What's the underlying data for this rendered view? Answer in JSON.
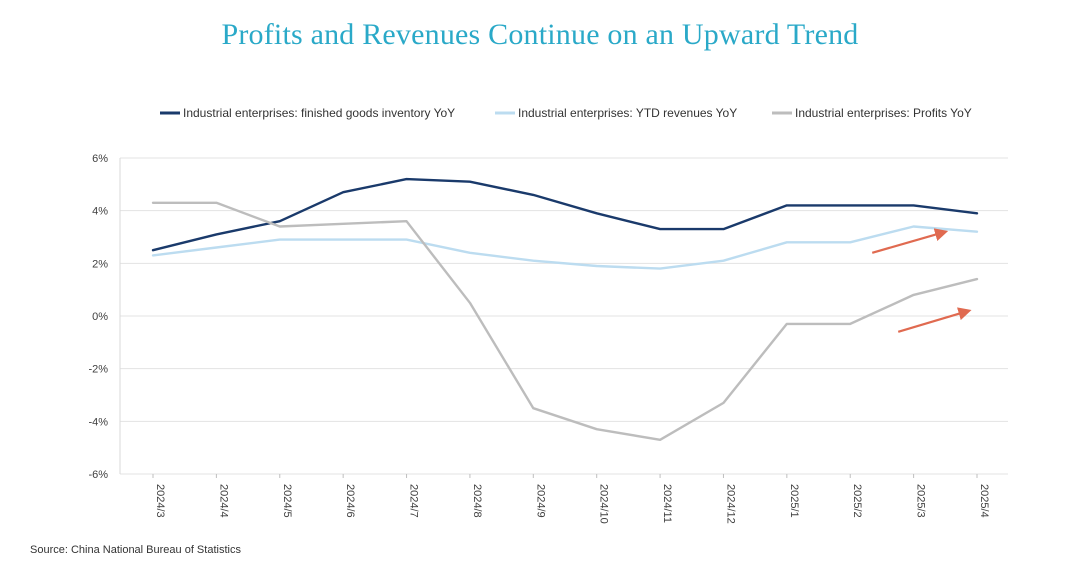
{
  "title": "Profits and Revenues Continue on an Upward Trend",
  "source": "Source: China National Bureau of Statistics",
  "chart_data": {
    "type": "line",
    "categories": [
      "2024/3",
      "2024/4",
      "2024/5",
      "2024/6",
      "2024/7",
      "2024/8",
      "2024/9",
      "2024/10",
      "2024/11",
      "2024/12",
      "2025/1",
      "2025/2",
      "2025/3",
      "2025/4"
    ],
    "ylim": [
      -6,
      6
    ],
    "yticks": [
      6,
      4,
      2,
      0,
      -2,
      -4,
      -6
    ],
    "ytick_labels": [
      "6%",
      "4%",
      "2%",
      "0%",
      "-2%",
      "-4%",
      "-6%"
    ],
    "grid": true,
    "legend_position": "top",
    "series": [
      {
        "name": "Industrial enterprises: finished goods inventory YoY",
        "color": "#1a3a6b",
        "values": [
          2.5,
          3.1,
          3.6,
          4.7,
          5.2,
          5.1,
          4.6,
          3.9,
          3.3,
          3.3,
          4.2,
          4.2,
          4.2,
          3.9
        ]
      },
      {
        "name": "Industrial enterprises: YTD revenues YoY",
        "color": "#bcdcf0",
        "values": [
          2.3,
          2.6,
          2.9,
          2.9,
          2.9,
          2.4,
          2.1,
          1.9,
          1.8,
          2.1,
          2.8,
          2.8,
          3.4,
          3.2
        ]
      },
      {
        "name": "Industrial enterprises: Profits YoY",
        "color": "#bdbdbd",
        "values": [
          4.3,
          4.3,
          3.4,
          3.5,
          3.6,
          0.5,
          -3.5,
          -4.3,
          -4.7,
          -3.3,
          -0.3,
          -0.3,
          0.8,
          1.4
        ]
      }
    ],
    "annotations": [
      {
        "type": "arrow",
        "color": "#e06a50",
        "from": {
          "x": "2025/2",
          "y": 2.4
        },
        "to": {
          "x": "2025/3",
          "y": 3.2
        }
      },
      {
        "type": "arrow",
        "color": "#e06a50",
        "from": {
          "x": "2025/2",
          "y": -0.6
        },
        "to": {
          "x": "2025/4",
          "y": 0.2
        }
      }
    ]
  }
}
